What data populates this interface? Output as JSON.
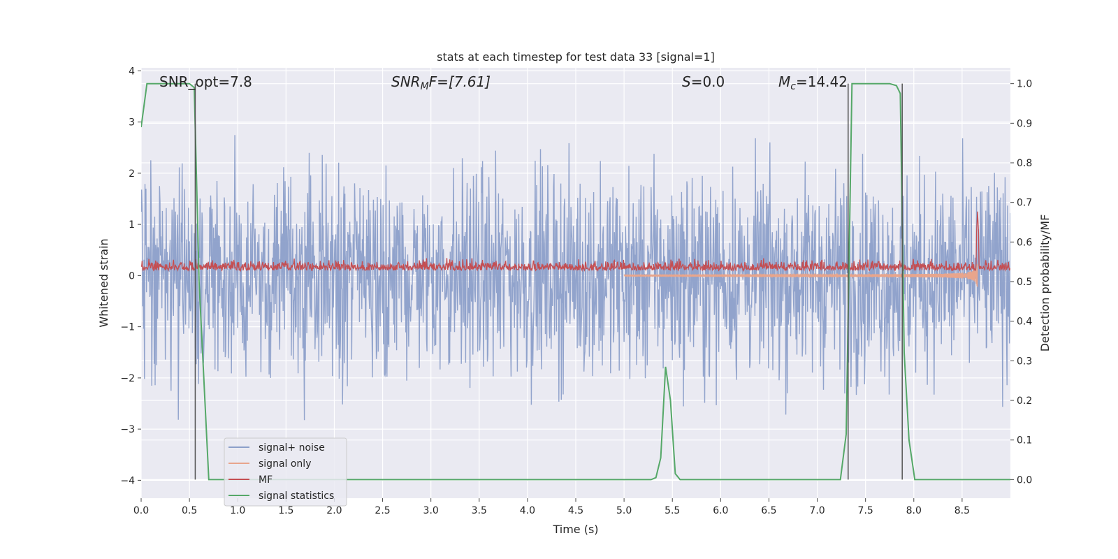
{
  "chart_data": {
    "type": "line",
    "title": "stats at each timestep for test data 33 [signal=1]",
    "xlabel": "Time (s)",
    "ylabel_left": "Whitened strain",
    "ylabel_right": "Detection probability/MF",
    "xlim": [
      0.0,
      9.0
    ],
    "ylim_left": [
      -4.35,
      4.06
    ],
    "ylim_right": [
      -0.047,
      1.04
    ],
    "xticks": [
      "0.0",
      "0.5",
      "1.0",
      "1.5",
      "2.0",
      "2.5",
      "3.0",
      "3.5",
      "4.0",
      "4.5",
      "5.0",
      "5.5",
      "6.0",
      "6.5",
      "7.0",
      "7.5",
      "8.0",
      "8.5"
    ],
    "yticks_left": [
      "−4",
      "−3",
      "−2",
      "−1",
      "0",
      "1",
      "2",
      "3",
      "4"
    ],
    "yticks_right": [
      "0.0",
      "0.1",
      "0.2",
      "0.3",
      "0.4",
      "0.5",
      "0.6",
      "0.7",
      "0.8",
      "0.9",
      "1.0"
    ],
    "grid": true,
    "legend_position": "lower-left",
    "annotations": {
      "snr_opt": "SNR_opt=7.8",
      "snr_mf_base": "SNR",
      "snr_mf_sub": "M",
      "snr_mf_rest": "F=[7.61]",
      "s_val_base": "S",
      "s_val_rest": "=0.0",
      "mc_base": "M",
      "mc_sub": "c",
      "mc_rest": "=14.42"
    },
    "series": [
      {
        "name": "signal+ noise",
        "color": "#8c9fc9",
        "axis": "left",
        "style": "noise",
        "amplitude": 1.0
      },
      {
        "name": "signal only",
        "color": "#e8a58c",
        "axis": "left",
        "style": "chirp",
        "t_merge": 8.66
      },
      {
        "name": "MF",
        "color": "#c44e52",
        "axis": "left",
        "style": "mf",
        "level": 0.15,
        "peak_t": 8.66,
        "peak_y": 1.25
      },
      {
        "name": "signal statistics",
        "color": "#55a868",
        "axis": "right",
        "x": [
          0.0,
          0.06,
          0.3,
          0.5,
          0.55,
          0.6,
          0.7,
          5.28,
          5.33,
          5.38,
          5.43,
          5.48,
          5.53,
          5.58,
          5.64,
          7.24,
          7.3,
          7.36,
          7.75,
          7.82,
          7.86,
          7.9,
          7.95,
          8.01,
          9.0
        ],
        "y": [
          0.89,
          1.0,
          1.0,
          1.0,
          0.99,
          0.5,
          0.0,
          0.0,
          0.005,
          0.055,
          0.285,
          0.2,
          0.015,
          0.0,
          0.0,
          0.0,
          0.115,
          1.0,
          1.0,
          0.995,
          0.975,
          0.32,
          0.1,
          0.0,
          0.0
        ]
      }
    ],
    "vlines": [
      0.56,
      7.32,
      7.88
    ],
    "vline_color": "#555555"
  }
}
